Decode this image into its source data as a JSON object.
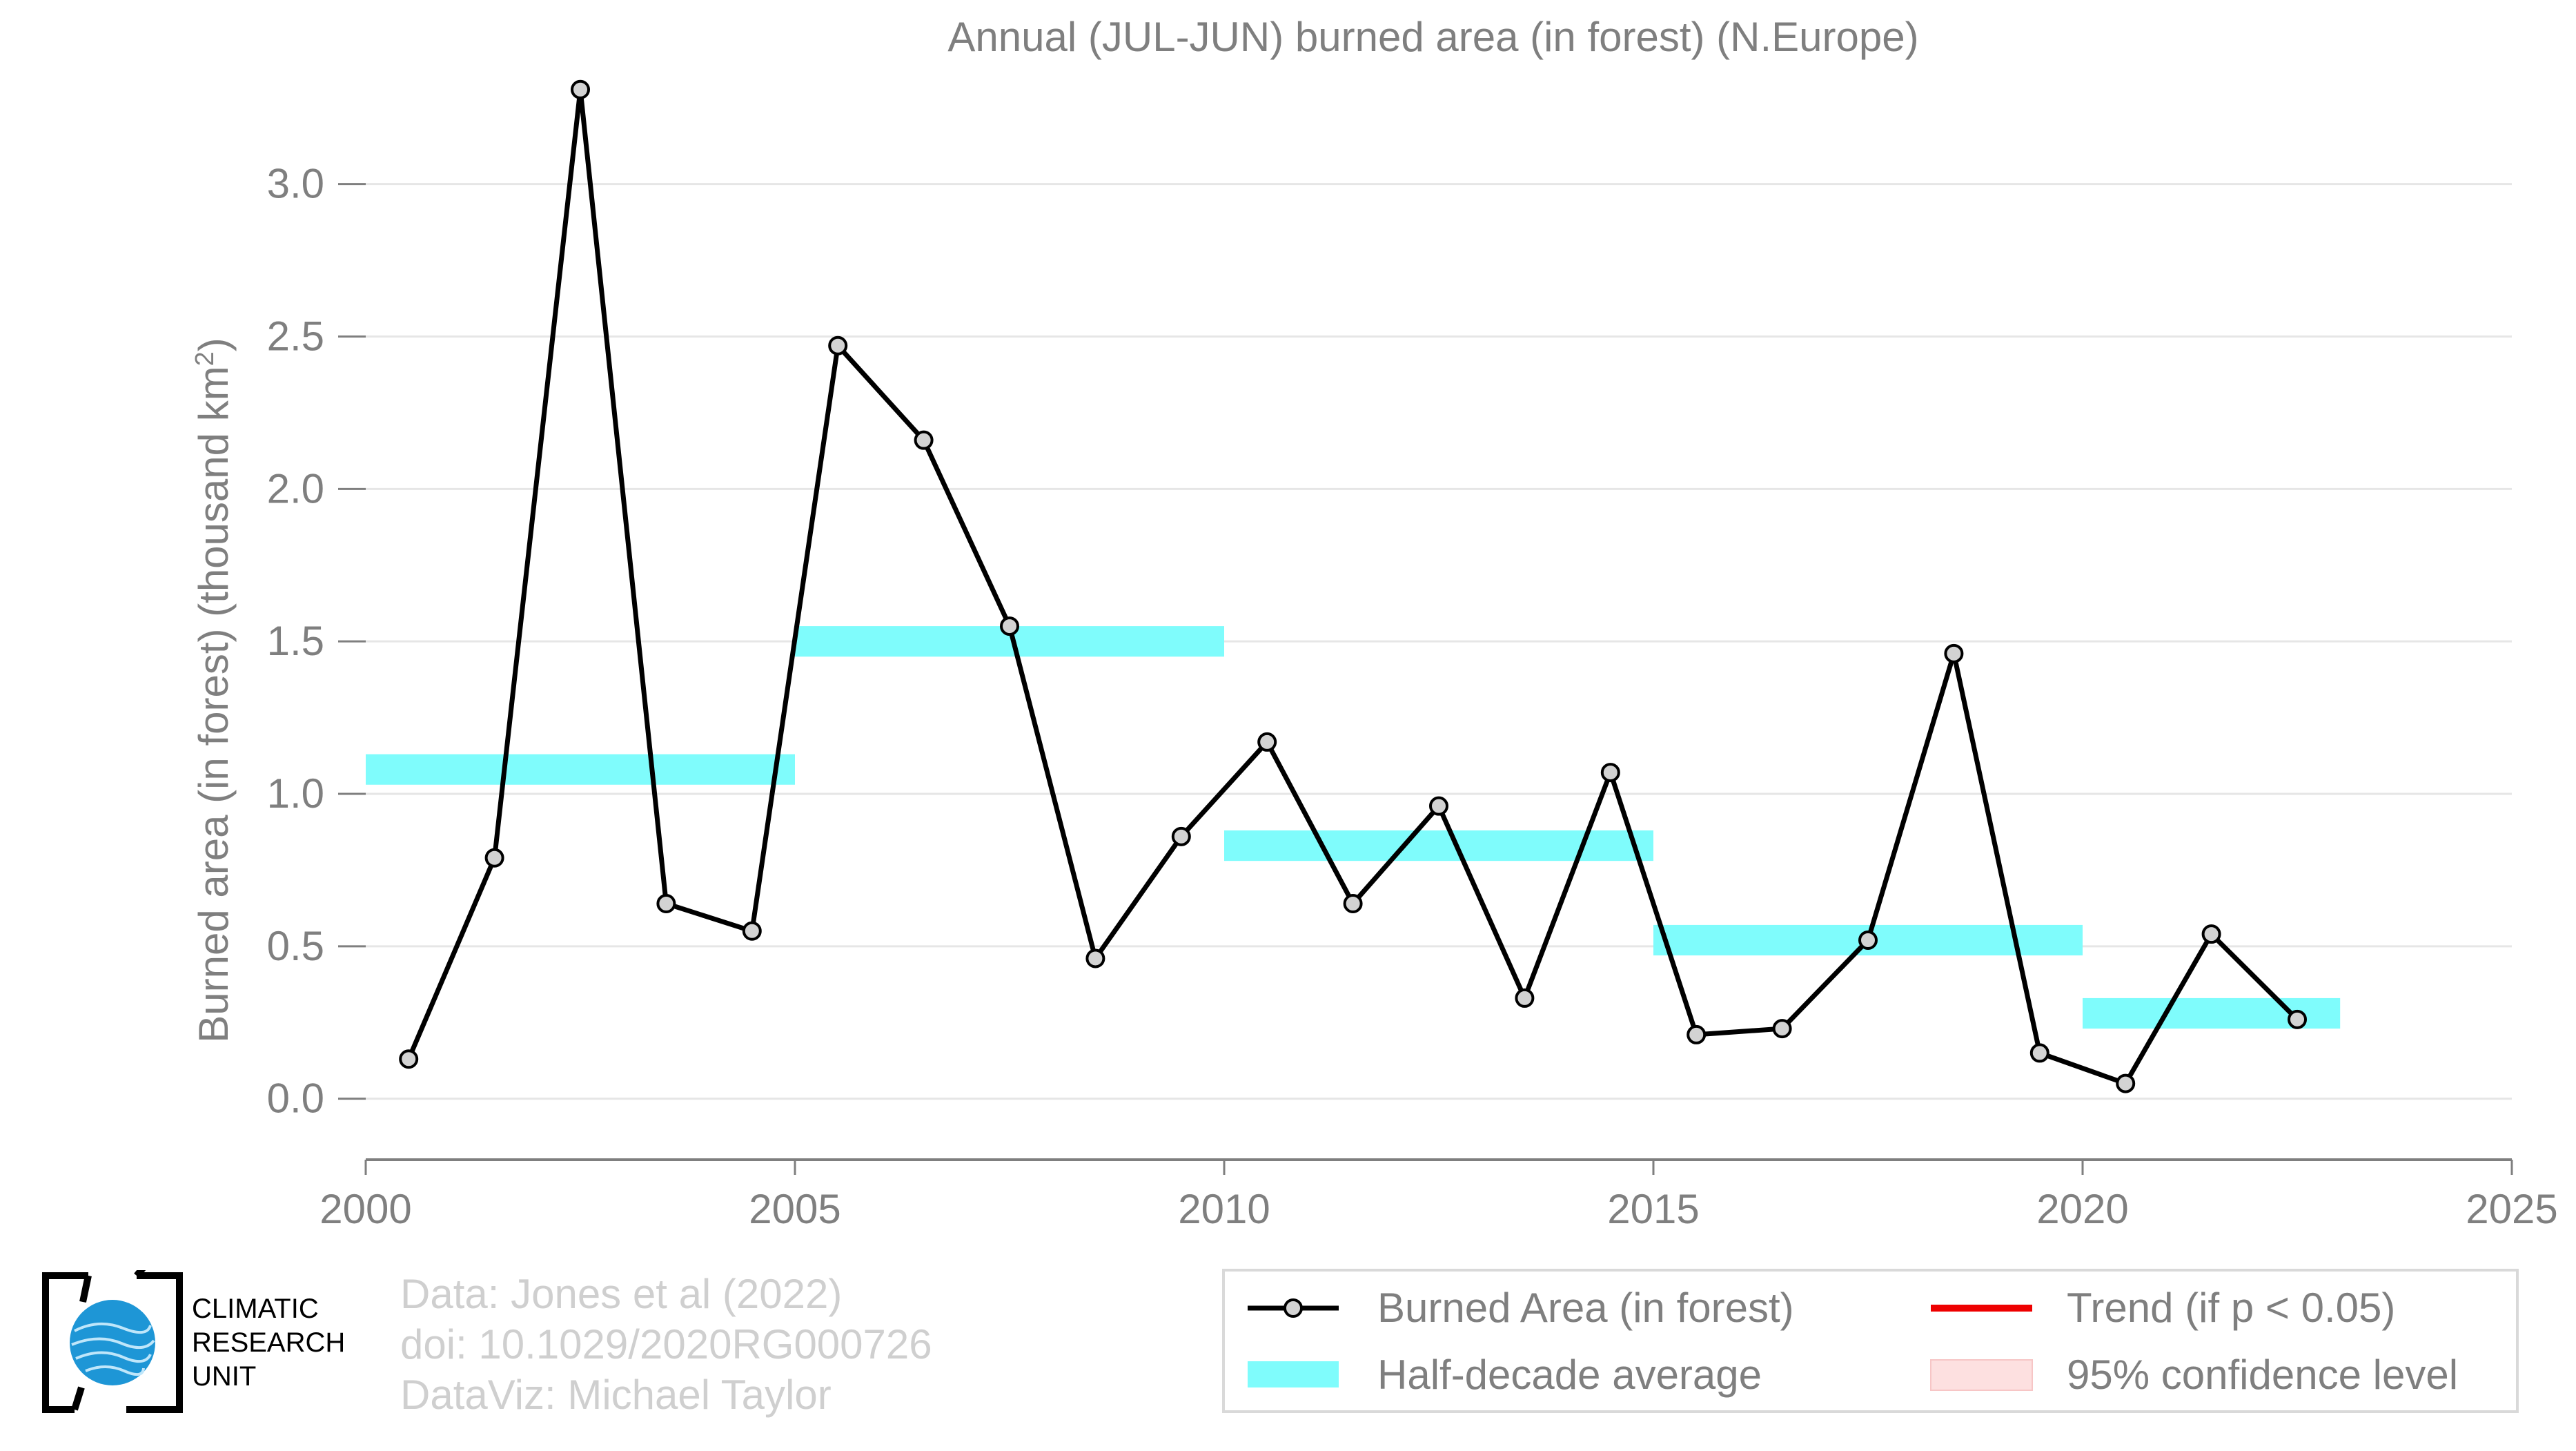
{
  "chart_data": {
    "type": "line",
    "title": "Annual (JUL-JUN) burned area (in forest) (N.Europe)",
    "xlabel": "",
    "ylabel": "Burned area (in forest) (thousand km",
    "ylabel_superscript": "2",
    "ylabel_close": ")",
    "xlim": [
      2000,
      2025
    ],
    "ylim": [
      -0.2,
      3.4
    ],
    "xticks": [
      2000,
      2005,
      2010,
      2015,
      2020,
      2025
    ],
    "xtick_labels": [
      "2000",
      "2005",
      "2010",
      "2015",
      "2020",
      "2025"
    ],
    "yticks": [
      0.0,
      0.5,
      1.0,
      1.5,
      2.0,
      2.5,
      3.0
    ],
    "ytick_labels": [
      "0.0",
      "0.5",
      "1.0",
      "1.5",
      "2.0",
      "2.5",
      "3.0"
    ],
    "grid": true,
    "series": [
      {
        "name": "Burned Area (in forest)",
        "color": "#000000",
        "marker_fill": "#d3d3d3",
        "x": [
          2000.5,
          2001.5,
          2002.5,
          2003.5,
          2004.5,
          2005.5,
          2006.5,
          2007.5,
          2008.5,
          2009.5,
          2010.5,
          2011.5,
          2012.5,
          2013.5,
          2014.5,
          2015.5,
          2016.5,
          2017.5,
          2018.5,
          2019.5,
          2020.5,
          2021.5,
          2022.5
        ],
        "values": [
          0.13,
          0.79,
          3.31,
          0.64,
          0.55,
          2.47,
          2.16,
          1.55,
          0.46,
          0.86,
          1.17,
          0.64,
          0.96,
          0.33,
          1.07,
          0.21,
          0.23,
          0.52,
          1.46,
          0.15,
          0.05,
          0.54,
          0.26
        ]
      }
    ],
    "half_decade_averages": [
      {
        "start": 2000,
        "end": 2005,
        "value": 1.08
      },
      {
        "start": 2005,
        "end": 2010,
        "value": 1.5
      },
      {
        "start": 2010,
        "end": 2015,
        "value": 0.83
      },
      {
        "start": 2015,
        "end": 2020,
        "value": 0.52
      },
      {
        "start": 2020,
        "end": 2023,
        "value": 0.28
      }
    ],
    "half_decade_color": "#7ffcfc",
    "trend_color": "#ee0000",
    "confidence_color": "#fde0e0",
    "legend_position": "bottom-right",
    "legend": [
      {
        "label": "Burned Area (in forest)",
        "kind": "line-marker"
      },
      {
        "label": "Trend (if p < 0.05)",
        "kind": "trend"
      },
      {
        "label": "Half-decade average",
        "kind": "band"
      },
      {
        "label": "95% confidence level",
        "kind": "confidence"
      }
    ]
  },
  "credits": {
    "line1": "Data: Jones et al (2022)",
    "line2": "doi: 10.1029/2020RG000726",
    "line3": "DataViz: Michael Taylor"
  },
  "logo": {
    "line1": "CLIMATIC",
    "line2": "RESEARCH",
    "line3": "UNIT"
  }
}
